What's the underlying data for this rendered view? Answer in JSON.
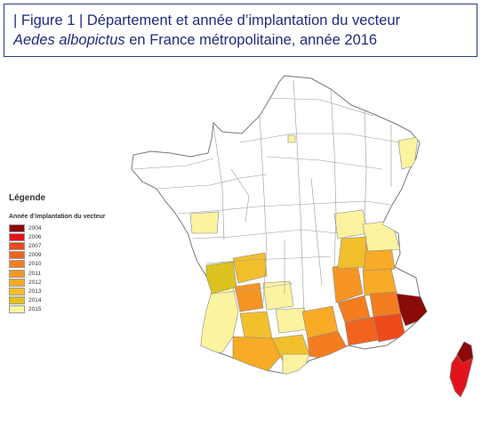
{
  "title": {
    "line1": "| Figure 1 | Département et année d’implantation du vecteur",
    "line2_italic": "Aedes albopictus",
    "line2_rest": " en France métropolitaine, année 2016"
  },
  "legend": {
    "title": "Légende",
    "subtitle": "Année d’implantation du vecteur",
    "items": [
      {
        "year": "2004",
        "color": "#8b0a0a"
      },
      {
        "year": "2006",
        "color": "#e3131b"
      },
      {
        "year": "2007",
        "color": "#ef4a1c"
      },
      {
        "year": "2009",
        "color": "#f2641e"
      },
      {
        "year": "2010",
        "color": "#f47d20"
      },
      {
        "year": "2011",
        "color": "#f69523"
      },
      {
        "year": "2012",
        "color": "#f7ab26"
      },
      {
        "year": "2013",
        "color": "#f2bf2c"
      },
      {
        "year": "2014",
        "color": "#ddc320"
      },
      {
        "year": "2015",
        "color": "#fbf3a0"
      }
    ]
  }
}
